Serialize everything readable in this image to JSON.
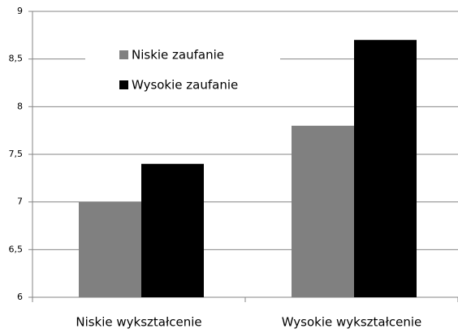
{
  "chart_data": {
    "type": "bar",
    "categories": [
      "Niskie wykształcenie",
      "Wysokie wykształcenie"
    ],
    "series": [
      {
        "name": "Niskie zaufanie",
        "color": "#808080",
        "values": [
          7.0,
          7.8
        ]
      },
      {
        "name": "Wysokie zaufanie",
        "color": "#000000",
        "values": [
          7.4,
          8.7
        ]
      }
    ],
    "ylim": [
      6,
      9
    ],
    "yticks": [
      6,
      {
        "value": 6.5,
        "label": "6,5"
      },
      7,
      {
        "value": 7.5,
        "label": "7,5"
      },
      8,
      {
        "value": 8.5,
        "label": "8,5"
      },
      9
    ],
    "grid": true,
    "legend": "upper-left"
  }
}
